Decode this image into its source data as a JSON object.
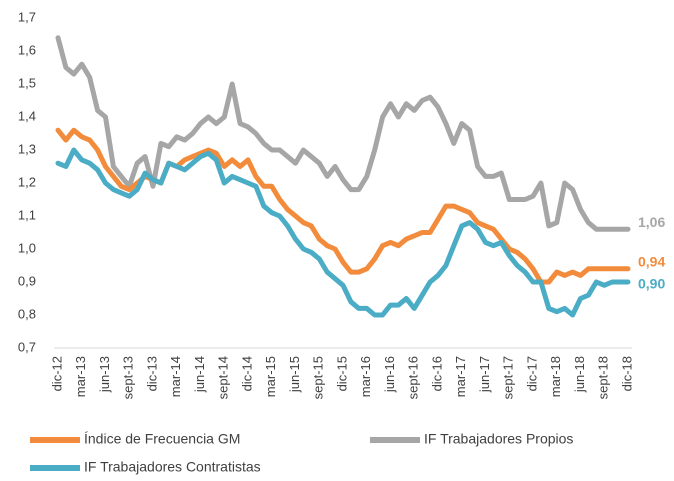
{
  "chart_data": {
    "type": "line",
    "categories": [
      "dic-12",
      null,
      null,
      "mar-13",
      null,
      null,
      "jun-13",
      null,
      null,
      "sept-13",
      null,
      null,
      "dic-13",
      null,
      null,
      "mar-14",
      null,
      null,
      "jun-14",
      null,
      null,
      "sept-14",
      null,
      null,
      "dic-14",
      null,
      null,
      "mar-15",
      null,
      null,
      "jun-15",
      null,
      null,
      "sept-15",
      null,
      null,
      "dic-15",
      null,
      null,
      "mar-16",
      null,
      null,
      "jun-16",
      null,
      null,
      "sept-16",
      null,
      null,
      "dic-16",
      null,
      null,
      "mar-17",
      null,
      null,
      "jun-17",
      null,
      null,
      "sept-17",
      null,
      null,
      "dic-17",
      null,
      null,
      "mar-18",
      null,
      null,
      "jun-18",
      null,
      null,
      "sept-18",
      null,
      null,
      "dic-18"
    ],
    "series": [
      {
        "name": "Índice de Frecuencia GM",
        "color": "#F28C3C",
        "values": [
          1.36,
          1.33,
          1.36,
          1.34,
          1.33,
          1.3,
          1.25,
          1.22,
          1.19,
          1.18,
          1.2,
          1.22,
          1.21,
          1.2,
          1.26,
          1.25,
          1.27,
          1.28,
          1.29,
          1.3,
          1.29,
          1.25,
          1.27,
          1.25,
          1.27,
          1.22,
          1.19,
          1.19,
          1.15,
          1.12,
          1.1,
          1.08,
          1.07,
          1.03,
          1.01,
          1.0,
          0.96,
          0.93,
          0.93,
          0.94,
          0.97,
          1.01,
          1.02,
          1.01,
          1.03,
          1.04,
          1.05,
          1.05,
          1.09,
          1.13,
          1.13,
          1.12,
          1.11,
          1.08,
          1.07,
          1.06,
          1.03,
          1.0,
          0.99,
          0.97,
          0.94,
          0.9,
          0.9,
          0.93,
          0.92,
          0.93,
          0.92,
          0.94,
          0.94,
          0.94,
          0.94,
          0.94,
          0.94
        ],
        "value_labels": [
          null,
          null,
          null,
          null,
          null,
          null,
          null,
          null,
          null,
          null,
          null,
          null,
          null,
          null,
          null,
          null,
          null,
          null,
          null,
          null,
          null,
          null,
          null,
          null,
          null,
          null,
          null,
          null,
          null,
          null,
          null,
          null,
          null,
          null,
          null,
          null,
          null,
          null,
          null,
          null,
          null,
          null,
          null,
          null,
          null,
          null,
          null,
          null,
          null,
          null,
          null,
          null,
          null,
          null,
          null,
          null,
          null,
          null,
          null,
          null,
          null,
          null,
          null,
          null,
          null,
          null,
          null,
          null,
          null,
          null,
          null,
          null,
          "0,94"
        ]
      },
      {
        "name": "IF Trabajadores Propios",
        "color": "#A6A6A6",
        "values": [
          1.64,
          1.55,
          1.53,
          1.56,
          1.52,
          1.42,
          1.4,
          1.25,
          1.22,
          1.19,
          1.26,
          1.28,
          1.19,
          1.32,
          1.31,
          1.34,
          1.33,
          1.35,
          1.38,
          1.4,
          1.38,
          1.4,
          1.5,
          1.38,
          1.37,
          1.35,
          1.32,
          1.3,
          1.3,
          1.28,
          1.26,
          1.3,
          1.28,
          1.26,
          1.22,
          1.25,
          1.21,
          1.18,
          1.18,
          1.22,
          1.3,
          1.4,
          1.44,
          1.4,
          1.44,
          1.42,
          1.45,
          1.46,
          1.43,
          1.38,
          1.32,
          1.38,
          1.36,
          1.25,
          1.22,
          1.22,
          1.23,
          1.15,
          1.15,
          1.15,
          1.16,
          1.2,
          1.07,
          1.08,
          1.2,
          1.18,
          1.12,
          1.08,
          1.06,
          1.06,
          1.06,
          1.06,
          1.06
        ],
        "value_labels": [
          null,
          null,
          null,
          null,
          null,
          null,
          null,
          null,
          null,
          null,
          null,
          null,
          null,
          null,
          null,
          null,
          null,
          null,
          null,
          null,
          null,
          null,
          null,
          null,
          null,
          null,
          null,
          null,
          null,
          null,
          null,
          null,
          null,
          null,
          null,
          null,
          null,
          null,
          null,
          null,
          null,
          null,
          null,
          null,
          null,
          null,
          null,
          null,
          null,
          null,
          null,
          null,
          null,
          null,
          null,
          null,
          null,
          null,
          null,
          null,
          null,
          null,
          null,
          null,
          null,
          null,
          null,
          null,
          null,
          null,
          null,
          null,
          "1,06"
        ]
      },
      {
        "name": "IF Trabajadores Contratistas",
        "color": "#4BACC6",
        "values": [
          1.26,
          1.25,
          1.3,
          1.27,
          1.26,
          1.24,
          1.2,
          1.18,
          1.17,
          1.16,
          1.18,
          1.23,
          1.21,
          1.2,
          1.26,
          1.25,
          1.24,
          1.26,
          1.28,
          1.29,
          1.27,
          1.2,
          1.22,
          1.21,
          1.2,
          1.19,
          1.13,
          1.11,
          1.1,
          1.07,
          1.03,
          1.0,
          0.99,
          0.97,
          0.93,
          0.91,
          0.89,
          0.84,
          0.82,
          0.82,
          0.8,
          0.8,
          0.83,
          0.83,
          0.85,
          0.82,
          0.86,
          0.9,
          0.92,
          0.95,
          1.01,
          1.07,
          1.08,
          1.06,
          1.02,
          1.01,
          1.02,
          0.98,
          0.95,
          0.93,
          0.9,
          0.9,
          0.82,
          0.81,
          0.82,
          0.8,
          0.85,
          0.86,
          0.9,
          0.89,
          0.9,
          0.9,
          0.9
        ],
        "value_labels": [
          null,
          null,
          null,
          null,
          null,
          null,
          null,
          null,
          null,
          null,
          null,
          null,
          null,
          null,
          null,
          null,
          null,
          null,
          null,
          null,
          null,
          null,
          null,
          null,
          null,
          null,
          null,
          null,
          null,
          null,
          null,
          null,
          null,
          null,
          null,
          null,
          null,
          null,
          null,
          null,
          null,
          null,
          null,
          null,
          null,
          null,
          null,
          null,
          null,
          null,
          null,
          null,
          null,
          null,
          null,
          null,
          null,
          null,
          null,
          null,
          null,
          null,
          null,
          null,
          null,
          null,
          null,
          null,
          null,
          null,
          null,
          null,
          "0,90"
        ]
      }
    ],
    "ylim": [
      0.7,
      1.7
    ],
    "yticks": [
      {
        "value": 0.7,
        "label": "0,7"
      },
      {
        "value": 0.8,
        "label": "0,8"
      },
      {
        "value": 0.9,
        "label": "0,9"
      },
      {
        "value": 1.0,
        "label": "1,0"
      },
      {
        "value": 1.1,
        "label": "1,1"
      },
      {
        "value": 1.2,
        "label": "1,2"
      },
      {
        "value": 1.3,
        "label": "1,3"
      },
      {
        "value": 1.4,
        "label": "1,4"
      },
      {
        "value": 1.5,
        "label": "1,5"
      },
      {
        "value": 1.6,
        "label": "1,6"
      },
      {
        "value": 1.7,
        "label": "1,7"
      }
    ],
    "grid": false
  }
}
